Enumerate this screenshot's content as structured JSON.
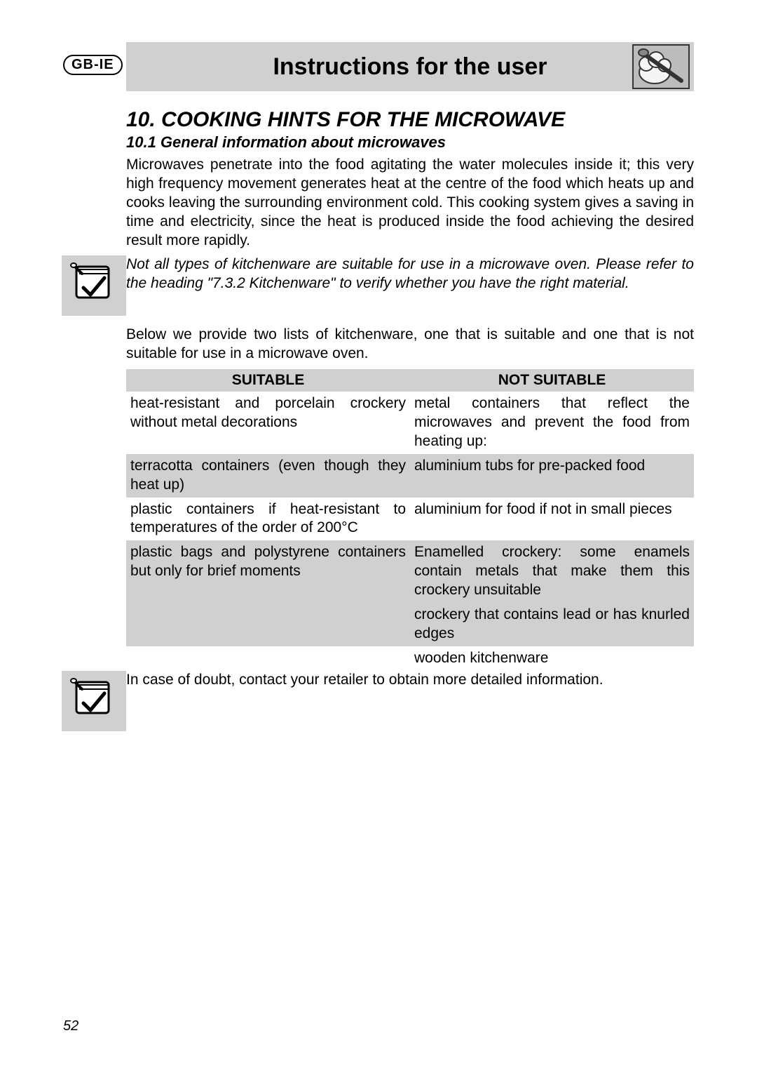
{
  "badge": "GB-IE",
  "header": {
    "title": "Instructions for the user",
    "icon_name": "chef-hat-spoon-icon"
  },
  "section": {
    "heading": "10. COOKING HINTS FOR THE MICROWAVE",
    "sub_heading": "10.1  General information about microwaves",
    "intro_para": "Microwaves penetrate into the food agitating the water molecules inside it; this very high frequency movement generates heat at the centre of the food which heats up and cooks leaving the surrounding environment cold. This cooking system gives a saving in time and electricity, since the heat is produced inside the food achieving the desired result more rapidly.",
    "note1": "Not all types of kitchenware are suitable for use in a microwave oven. Please refer to the heading \"7.3.2 Kitchenware\" to verify whether you have the right material.",
    "list_intro": "Below we provide two lists of kitchenware, one that is suitable and one that is not suitable for use in a microwave oven.",
    "table": {
      "columns": [
        "SUITABLE",
        "NOT SUITABLE"
      ],
      "rows": [
        [
          "heat-resistant and porcelain crockery without metal decorations",
          "metal containers that reflect the microwaves and prevent the food from heating up:"
        ],
        [
          "terracotta containers (even though they heat up)",
          "aluminium tubs for pre-packed food"
        ],
        [
          "plastic containers if heat-resistant to temperatures of the order of  200°C",
          "aluminium for food if not in small pieces"
        ],
        [
          "plastic bags and polystyrene containers but only for brief moments",
          "Enamelled crockery: some enamels contain metals that make them this crockery unsuitable"
        ],
        [
          "",
          "crockery that contains lead or has knurled edges"
        ],
        [
          "",
          "wooden kitchenware"
        ]
      ],
      "shaded_rows": [
        1,
        3,
        4
      ]
    },
    "note2": "In case of doubt, contact your retailer to obtain more detailed information."
  },
  "page_number": "52",
  "colors": {
    "shade": "#d0d0d0",
    "text": "#000000",
    "bg": "#ffffff"
  }
}
